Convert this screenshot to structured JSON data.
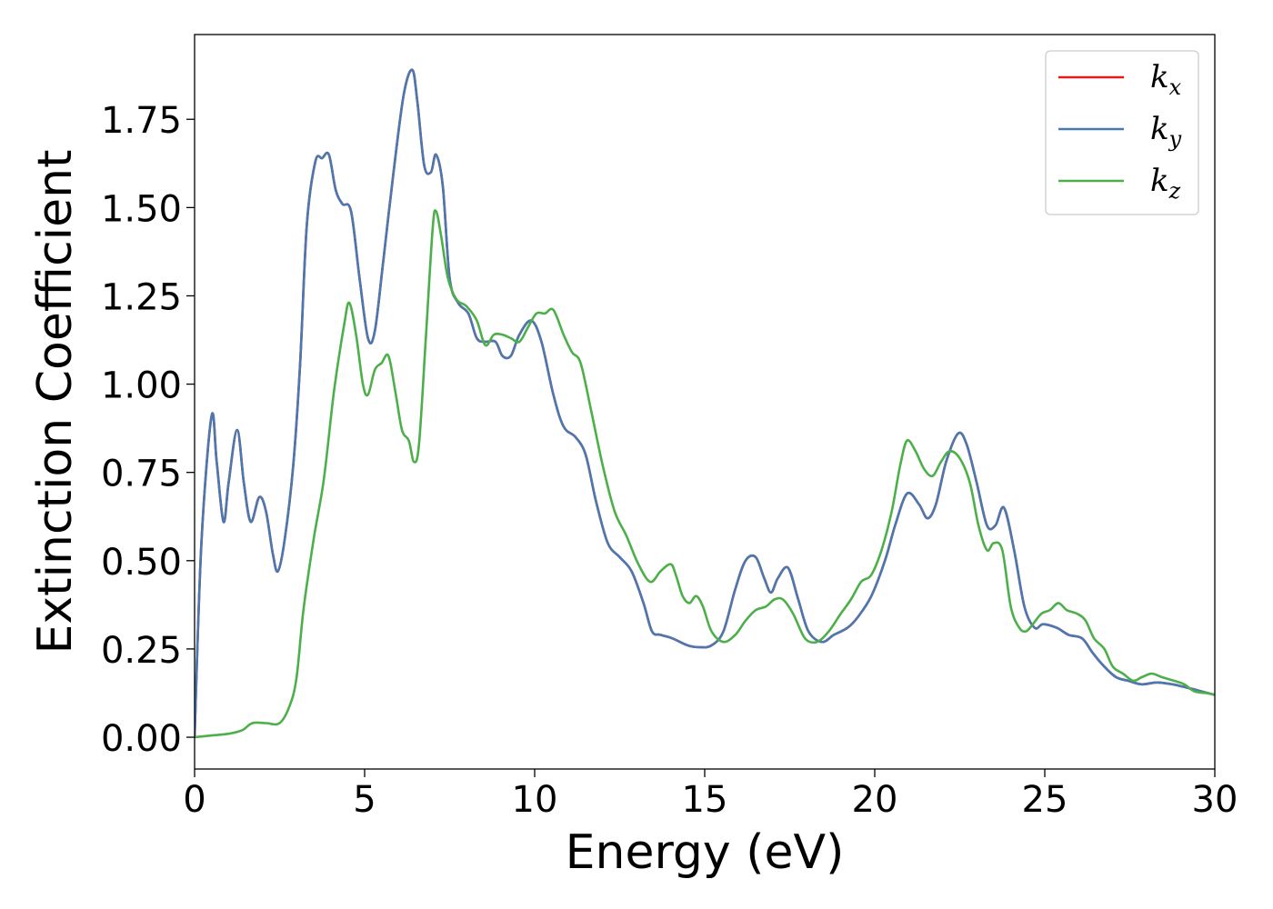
{
  "chart_data": {
    "type": "line",
    "title": "",
    "xlabel": "Energy (eV)",
    "ylabel": "Extinction Coefficient",
    "xlim": [
      0,
      30
    ],
    "ylim": [
      -0.09,
      1.99
    ],
    "xticks": [
      0,
      5,
      10,
      15,
      20,
      25,
      30
    ],
    "xtick_labels": [
      "0",
      "5",
      "10",
      "15",
      "20",
      "25",
      "30"
    ],
    "yticks": [
      0,
      0.25,
      0.5,
      0.75,
      1.0,
      1.25,
      1.5,
      1.75
    ],
    "ytick_labels": [
      "0.00",
      "0.25",
      "0.50",
      "0.75",
      "1.00",
      "1.25",
      "1.50",
      "1.75"
    ],
    "grid": false,
    "legend_position": "top-right",
    "series": [
      {
        "name": "k",
        "subscript": "x",
        "color": "#e41a1c",
        "x": [
          0,
          0.2,
          0.5,
          0.65,
          0.85,
          1.0,
          1.25,
          1.45,
          1.65,
          1.9,
          2.1,
          2.3,
          2.45,
          2.65,
          2.9,
          3.1,
          3.3,
          3.55,
          3.75,
          3.95,
          4.15,
          4.35,
          4.6,
          4.85,
          5.1,
          5.3,
          5.55,
          5.85,
          6.15,
          6.4,
          6.55,
          6.75,
          6.95,
          7.1,
          7.3,
          7.5,
          7.75,
          8.05,
          8.3,
          8.55,
          8.85,
          9.05,
          9.3,
          9.55,
          9.9,
          10.2,
          10.55,
          10.85,
          11.2,
          11.5,
          11.8,
          12.15,
          12.5,
          12.85,
          13.2,
          13.45,
          13.7,
          14.05,
          14.5,
          14.85,
          15.2,
          15.55,
          15.9,
          16.2,
          16.5,
          16.75,
          16.95,
          17.15,
          17.45,
          17.75,
          18.05,
          18.45,
          18.8,
          19.2,
          19.5,
          19.9,
          20.3,
          20.6,
          20.95,
          21.3,
          21.55,
          21.8,
          22.1,
          22.45,
          22.7,
          23.0,
          23.3,
          23.55,
          23.8,
          24.1,
          24.4,
          24.7,
          24.95,
          25.35,
          25.7,
          26.1,
          26.4,
          26.75,
          27.1,
          27.45,
          27.85,
          28.3,
          28.75,
          29.2,
          29.6,
          30.0
        ],
        "y": [
          0.0,
          0.55,
          0.91,
          0.78,
          0.61,
          0.72,
          0.87,
          0.72,
          0.61,
          0.68,
          0.64,
          0.52,
          0.47,
          0.56,
          0.77,
          1.05,
          1.45,
          1.63,
          1.64,
          1.65,
          1.55,
          1.51,
          1.49,
          1.3,
          1.13,
          1.15,
          1.35,
          1.6,
          1.82,
          1.89,
          1.8,
          1.62,
          1.6,
          1.65,
          1.56,
          1.3,
          1.23,
          1.2,
          1.13,
          1.12,
          1.12,
          1.08,
          1.08,
          1.14,
          1.18,
          1.12,
          0.97,
          0.88,
          0.85,
          0.8,
          0.67,
          0.55,
          0.51,
          0.47,
          0.38,
          0.3,
          0.29,
          0.28,
          0.26,
          0.255,
          0.26,
          0.3,
          0.42,
          0.5,
          0.51,
          0.45,
          0.41,
          0.45,
          0.48,
          0.39,
          0.3,
          0.27,
          0.29,
          0.31,
          0.34,
          0.4,
          0.5,
          0.6,
          0.69,
          0.66,
          0.62,
          0.66,
          0.78,
          0.86,
          0.83,
          0.72,
          0.6,
          0.6,
          0.65,
          0.53,
          0.37,
          0.31,
          0.32,
          0.31,
          0.29,
          0.28,
          0.24,
          0.2,
          0.17,
          0.16,
          0.15,
          0.155,
          0.15,
          0.14,
          0.13,
          0.12
        ]
      },
      {
        "name": "k",
        "subscript": "y",
        "color": "#4a78b0",
        "x": [
          0,
          0.2,
          0.5,
          0.65,
          0.85,
          1.0,
          1.25,
          1.45,
          1.65,
          1.9,
          2.1,
          2.3,
          2.45,
          2.65,
          2.9,
          3.1,
          3.3,
          3.55,
          3.75,
          3.95,
          4.15,
          4.35,
          4.6,
          4.85,
          5.1,
          5.3,
          5.55,
          5.85,
          6.15,
          6.4,
          6.55,
          6.75,
          6.95,
          7.1,
          7.3,
          7.5,
          7.75,
          8.05,
          8.3,
          8.55,
          8.85,
          9.05,
          9.3,
          9.55,
          9.9,
          10.2,
          10.55,
          10.85,
          11.2,
          11.5,
          11.8,
          12.15,
          12.5,
          12.85,
          13.2,
          13.45,
          13.7,
          14.05,
          14.5,
          14.85,
          15.2,
          15.55,
          15.9,
          16.2,
          16.5,
          16.75,
          16.95,
          17.15,
          17.45,
          17.75,
          18.05,
          18.45,
          18.8,
          19.2,
          19.5,
          19.9,
          20.3,
          20.6,
          20.95,
          21.3,
          21.55,
          21.8,
          22.1,
          22.45,
          22.7,
          23.0,
          23.3,
          23.55,
          23.8,
          24.1,
          24.4,
          24.7,
          24.95,
          25.35,
          25.7,
          26.1,
          26.4,
          26.75,
          27.1,
          27.45,
          27.85,
          28.3,
          28.75,
          29.2,
          29.6,
          30.0
        ],
        "y": [
          0.0,
          0.55,
          0.91,
          0.78,
          0.61,
          0.72,
          0.87,
          0.72,
          0.61,
          0.68,
          0.64,
          0.52,
          0.47,
          0.56,
          0.77,
          1.05,
          1.45,
          1.63,
          1.64,
          1.65,
          1.55,
          1.51,
          1.49,
          1.3,
          1.13,
          1.15,
          1.35,
          1.6,
          1.82,
          1.89,
          1.8,
          1.62,
          1.6,
          1.65,
          1.56,
          1.3,
          1.23,
          1.2,
          1.13,
          1.12,
          1.12,
          1.08,
          1.08,
          1.14,
          1.18,
          1.12,
          0.97,
          0.88,
          0.85,
          0.8,
          0.67,
          0.55,
          0.51,
          0.47,
          0.38,
          0.3,
          0.29,
          0.28,
          0.26,
          0.255,
          0.26,
          0.3,
          0.42,
          0.5,
          0.51,
          0.45,
          0.41,
          0.45,
          0.48,
          0.39,
          0.3,
          0.27,
          0.29,
          0.31,
          0.34,
          0.4,
          0.5,
          0.6,
          0.69,
          0.66,
          0.62,
          0.66,
          0.78,
          0.86,
          0.83,
          0.72,
          0.6,
          0.6,
          0.65,
          0.53,
          0.37,
          0.31,
          0.32,
          0.31,
          0.29,
          0.28,
          0.24,
          0.2,
          0.17,
          0.16,
          0.15,
          0.155,
          0.15,
          0.14,
          0.13,
          0.12
        ]
      },
      {
        "name": "k",
        "subscript": "z",
        "color": "#4daf4a",
        "x": [
          0,
          0.5,
          1.0,
          1.4,
          1.7,
          2.1,
          2.5,
          2.8,
          3.0,
          3.2,
          3.5,
          3.8,
          4.1,
          4.4,
          4.55,
          4.75,
          4.95,
          5.1,
          5.3,
          5.5,
          5.7,
          5.9,
          6.1,
          6.3,
          6.45,
          6.6,
          6.8,
          7.0,
          7.1,
          7.25,
          7.45,
          7.7,
          8.0,
          8.3,
          8.55,
          8.8,
          9.05,
          9.3,
          9.55,
          9.8,
          10.05,
          10.3,
          10.55,
          10.85,
          11.1,
          11.35,
          11.65,
          12.0,
          12.35,
          12.7,
          13.05,
          13.4,
          13.7,
          14.0,
          14.15,
          14.35,
          14.55,
          14.75,
          14.95,
          15.2,
          15.55,
          15.9,
          16.2,
          16.5,
          16.8,
          17.05,
          17.3,
          17.6,
          17.95,
          18.3,
          18.65,
          19.0,
          19.3,
          19.6,
          19.9,
          20.2,
          20.5,
          20.75,
          20.95,
          21.2,
          21.45,
          21.7,
          21.95,
          22.2,
          22.5,
          22.8,
          23.05,
          23.3,
          23.5,
          23.75,
          24.0,
          24.25,
          24.45,
          24.65,
          24.9,
          25.15,
          25.4,
          25.65,
          25.95,
          26.2,
          26.45,
          26.75,
          27.0,
          27.3,
          27.6,
          27.85,
          28.15,
          28.45,
          28.8,
          29.1,
          29.4,
          29.75,
          30.0
        ],
        "y": [
          0.0,
          0.005,
          0.01,
          0.02,
          0.04,
          0.04,
          0.04,
          0.09,
          0.17,
          0.36,
          0.56,
          0.73,
          0.98,
          1.17,
          1.23,
          1.14,
          1.0,
          0.97,
          1.04,
          1.06,
          1.08,
          0.98,
          0.87,
          0.84,
          0.78,
          0.83,
          1.13,
          1.44,
          1.49,
          1.42,
          1.3,
          1.24,
          1.22,
          1.18,
          1.11,
          1.14,
          1.14,
          1.13,
          1.12,
          1.16,
          1.2,
          1.2,
          1.21,
          1.14,
          1.09,
          1.06,
          0.93,
          0.77,
          0.64,
          0.57,
          0.49,
          0.44,
          0.47,
          0.49,
          0.46,
          0.4,
          0.38,
          0.4,
          0.37,
          0.3,
          0.27,
          0.29,
          0.33,
          0.36,
          0.37,
          0.39,
          0.39,
          0.35,
          0.28,
          0.27,
          0.3,
          0.35,
          0.39,
          0.44,
          0.46,
          0.53,
          0.64,
          0.77,
          0.84,
          0.81,
          0.76,
          0.74,
          0.78,
          0.81,
          0.79,
          0.72,
          0.6,
          0.53,
          0.55,
          0.53,
          0.37,
          0.31,
          0.3,
          0.32,
          0.35,
          0.36,
          0.38,
          0.36,
          0.35,
          0.33,
          0.28,
          0.25,
          0.2,
          0.18,
          0.16,
          0.17,
          0.18,
          0.17,
          0.16,
          0.15,
          0.13,
          0.125,
          0.12
        ]
      }
    ]
  }
}
